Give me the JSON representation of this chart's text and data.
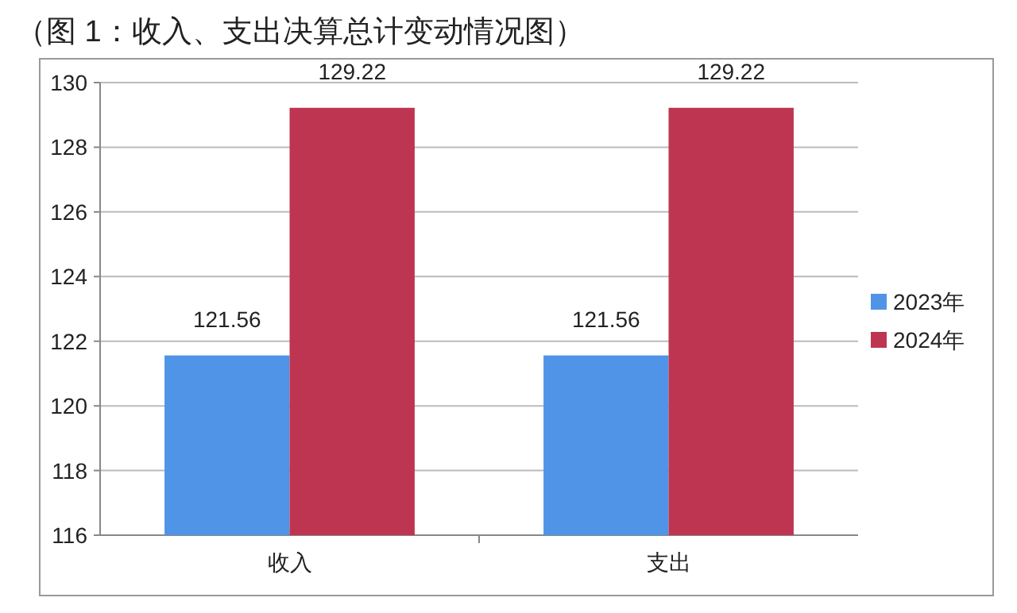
{
  "chart_data": {
    "type": "bar",
    "title": "（图 1：收入、支出决算总计变动情况图）",
    "categories": [
      "收入",
      "支出"
    ],
    "series": [
      {
        "name": "2023年",
        "color": "#4f94e6",
        "values": [
          121.56,
          121.56
        ]
      },
      {
        "name": "2024年",
        "color": "#be3551",
        "values": [
          129.22,
          129.22
        ]
      }
    ],
    "ylim": [
      116,
      130
    ],
    "yticks": [
      116,
      118,
      120,
      122,
      124,
      126,
      128,
      130
    ],
    "grid": "y",
    "data_labels": true,
    "legend": "right"
  }
}
